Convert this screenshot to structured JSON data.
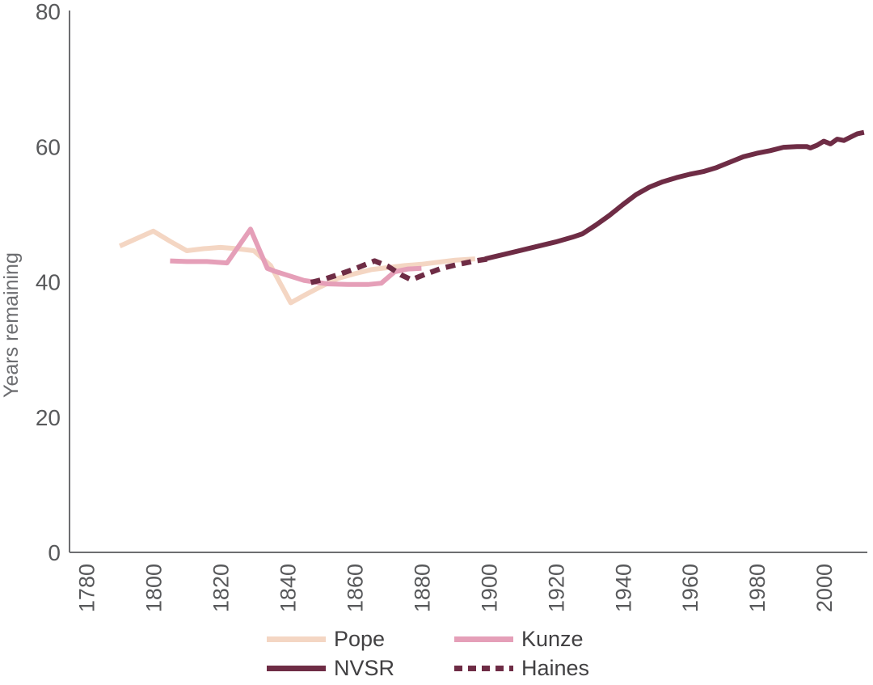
{
  "chart_data": {
    "type": "line",
    "title": "",
    "xlabel": "",
    "ylabel": "Years remaining",
    "xlim": [
      1775,
      2013
    ],
    "ylim": [
      0,
      80
    ],
    "x_ticks": [
      1780,
      1800,
      1820,
      1840,
      1860,
      1880,
      1900,
      1920,
      1940,
      1960,
      1980,
      2000
    ],
    "y_ticks": [
      0,
      20,
      40,
      60,
      80
    ],
    "grid": false,
    "legend_position": "bottom",
    "axis_color": "#6d6e71",
    "tick_label_color": "#58595b",
    "legend_text_color": "#414042",
    "series": [
      {
        "name": "Pope",
        "style": "solid",
        "color": "#f4d6c3",
        "points": [
          [
            1790,
            45.3
          ],
          [
            1795,
            46.4
          ],
          [
            1800,
            47.5
          ],
          [
            1805,
            46.0
          ],
          [
            1810,
            44.6
          ],
          [
            1815,
            44.9
          ],
          [
            1820,
            45.1
          ],
          [
            1825,
            44.9
          ],
          [
            1830,
            44.6
          ],
          [
            1835,
            42.4
          ],
          [
            1841,
            36.9
          ],
          [
            1845,
            38.0
          ],
          [
            1850,
            39.3
          ],
          [
            1855,
            40.5
          ],
          [
            1860,
            41.2
          ],
          [
            1865,
            41.8
          ],
          [
            1870,
            42.1
          ],
          [
            1875,
            42.4
          ],
          [
            1880,
            42.6
          ],
          [
            1885,
            42.9
          ],
          [
            1890,
            43.2
          ],
          [
            1896,
            43.4
          ]
        ]
      },
      {
        "name": "Kunze",
        "style": "solid",
        "color": "#e59fb8",
        "points": [
          [
            1805,
            43.1
          ],
          [
            1810,
            43.0
          ],
          [
            1816,
            43.0
          ],
          [
            1822,
            42.8
          ],
          [
            1829,
            47.8
          ],
          [
            1834,
            42.0
          ],
          [
            1836,
            41.6
          ],
          [
            1845,
            40.2
          ],
          [
            1852,
            39.7
          ],
          [
            1858,
            39.6
          ],
          [
            1864,
            39.6
          ],
          [
            1868,
            39.8
          ],
          [
            1872,
            41.5
          ],
          [
            1876,
            41.9
          ],
          [
            1880,
            42.0
          ]
        ]
      },
      {
        "name": "NVSR",
        "style": "solid",
        "color": "#6e2c45",
        "points": [
          [
            1899,
            43.4
          ],
          [
            1905,
            44.1
          ],
          [
            1910,
            44.7
          ],
          [
            1915,
            45.3
          ],
          [
            1920,
            45.9
          ],
          [
            1925,
            46.6
          ],
          [
            1928,
            47.1
          ],
          [
            1932,
            48.4
          ],
          [
            1936,
            49.8
          ],
          [
            1940,
            51.4
          ],
          [
            1944,
            52.9
          ],
          [
            1948,
            54.0
          ],
          [
            1952,
            54.8
          ],
          [
            1956,
            55.4
          ],
          [
            1960,
            55.9
          ],
          [
            1964,
            56.3
          ],
          [
            1968,
            56.9
          ],
          [
            1972,
            57.7
          ],
          [
            1976,
            58.5
          ],
          [
            1980,
            59.0
          ],
          [
            1984,
            59.4
          ],
          [
            1988,
            59.9
          ],
          [
            1992,
            60.0
          ],
          [
            1995,
            60.0
          ],
          [
            1996,
            59.8
          ],
          [
            1998,
            60.2
          ],
          [
            2000,
            60.8
          ],
          [
            2002,
            60.4
          ],
          [
            2004,
            61.1
          ],
          [
            2006,
            60.9
          ],
          [
            2008,
            61.4
          ],
          [
            2010,
            61.9
          ],
          [
            2012,
            62.1
          ]
        ]
      },
      {
        "name": "Haines",
        "style": "dashed",
        "color": "#6e2c45",
        "points": [
          [
            1847,
            39.9
          ],
          [
            1851,
            40.4
          ],
          [
            1856,
            41.2
          ],
          [
            1860,
            41.9
          ],
          [
            1866,
            43.1
          ],
          [
            1870,
            42.3
          ],
          [
            1874,
            41.0
          ],
          [
            1877,
            40.3
          ],
          [
            1881,
            41.1
          ],
          [
            1886,
            42.0
          ],
          [
            1891,
            42.6
          ],
          [
            1896,
            43.1
          ],
          [
            1900,
            43.4
          ]
        ]
      }
    ],
    "legend_order": [
      "Pope",
      "Kunze",
      "NVSR",
      "Haines"
    ]
  }
}
